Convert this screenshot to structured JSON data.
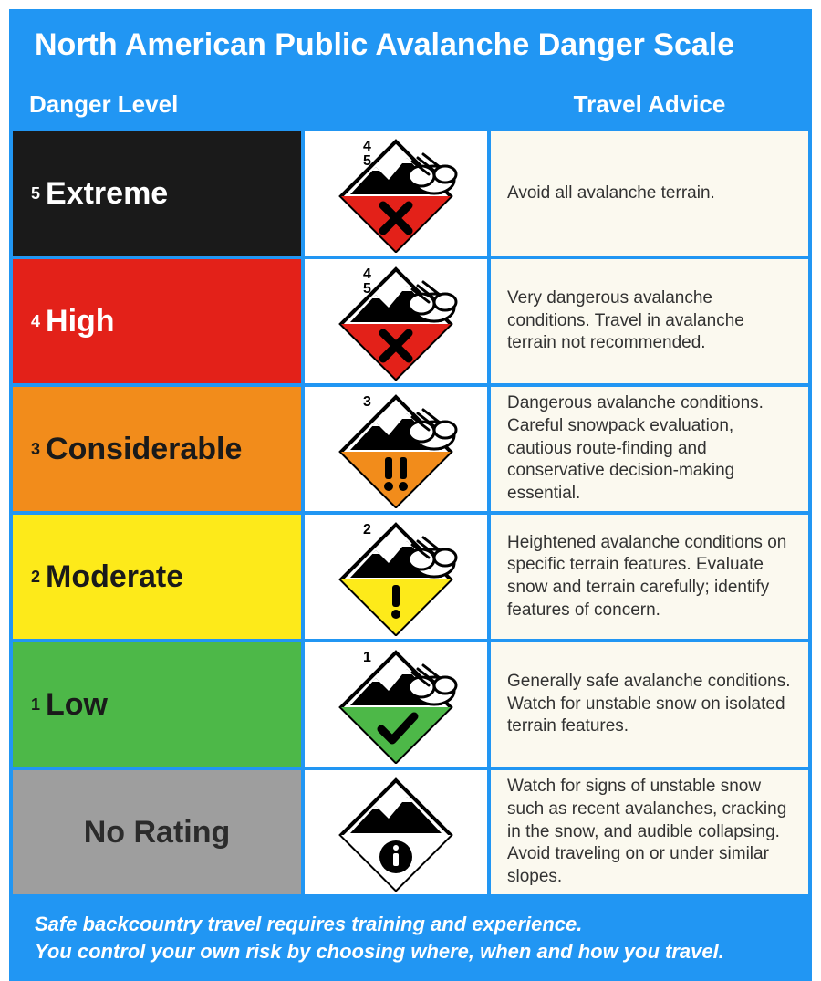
{
  "title": "North American Public Avalanche Danger Scale",
  "headers": {
    "danger": "Danger Level",
    "advice": "Travel Advice"
  },
  "header_bg": "#2196f3",
  "border_color": "#2196f3",
  "advice_bg": "#fbf9ef",
  "advice_text_color": "#323232",
  "title_fontsize": 34,
  "header_fontsize": 26,
  "level_fontsize": 34,
  "advice_fontsize": 19,
  "footer_fontsize": 22,
  "levels": [
    {
      "num": "5",
      "label": "Extreme",
      "cell_bg": "#1a1a1a",
      "cell_text": "#ffffff",
      "icon": {
        "type": "x",
        "fill": "#e32119",
        "top_label": "4\n5"
      },
      "advice": "Avoid all avalanche terrain."
    },
    {
      "num": "4",
      "label": "High",
      "cell_bg": "#e32119",
      "cell_text": "#ffffff",
      "icon": {
        "type": "x",
        "fill": "#e32119",
        "top_label": "4\n5"
      },
      "advice": "Very dangerous avalanche conditions. Travel in avalanche terrain not recommended."
    },
    {
      "num": "3",
      "label": "Considerable",
      "cell_bg": "#f28c1b",
      "cell_text": "#1a1a1a",
      "icon": {
        "type": "bangbang",
        "fill": "#f28c1b",
        "top_label": "3"
      },
      "advice": "Dangerous avalanche conditions. Careful snowpack evaluation, cautious route-finding and conservative decision-making essential."
    },
    {
      "num": "2",
      "label": "Moderate",
      "cell_bg": "#fdea1a",
      "cell_text": "#1a1a1a",
      "icon": {
        "type": "bang",
        "fill": "#fdea1a",
        "top_label": "2"
      },
      "advice": "Heightened avalanche conditions on specific terrain features. Evaluate snow and terrain carefully; identify features of concern."
    },
    {
      "num": "1",
      "label": "Low",
      "cell_bg": "#4db848",
      "cell_text": "#1a1a1a",
      "icon": {
        "type": "check",
        "fill": "#4db848",
        "top_label": "1"
      },
      "advice": "Generally safe avalanche conditions. Watch for unstable snow on isolated terrain features."
    },
    {
      "num": "",
      "label": "No Rating",
      "cell_bg": "#9e9e9e",
      "cell_text": "#2b2b2b",
      "icon": {
        "type": "info",
        "fill": "#ffffff",
        "top_label": ""
      },
      "advice": "Watch for signs of unstable snow such as recent avalanches, cracking in the snow, and audible collapsing. Avoid traveling on or under similar slopes."
    }
  ],
  "footer_line1": "Safe backcountry travel requires training and experience.",
  "footer_line2": "You control your own risk by choosing where, when and how you travel."
}
